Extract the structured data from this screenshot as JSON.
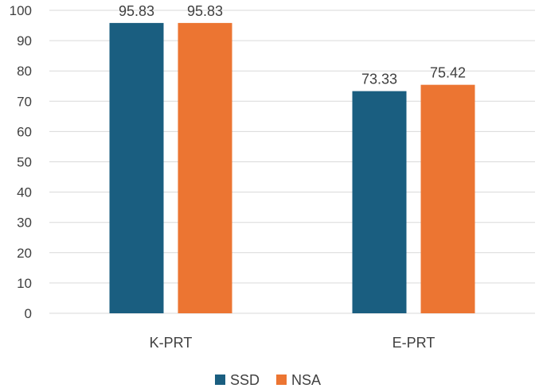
{
  "chart_data": {
    "type": "bar",
    "title": "",
    "xlabel": "",
    "ylabel": "",
    "categories": [
      "K-PRT",
      "E-PRT"
    ],
    "series": [
      {
        "name": "SSD",
        "color": "#1a5e80",
        "values": [
          95.83,
          73.33
        ]
      },
      {
        "name": "NSA",
        "color": "#ec7532",
        "values": [
          95.83,
          75.42
        ]
      }
    ],
    "ylim": [
      0,
      100
    ],
    "yticks": [
      0,
      10,
      20,
      30,
      40,
      50,
      60,
      70,
      80,
      90,
      100
    ],
    "grid": true,
    "data_labels": true,
    "legend": "bottom"
  }
}
